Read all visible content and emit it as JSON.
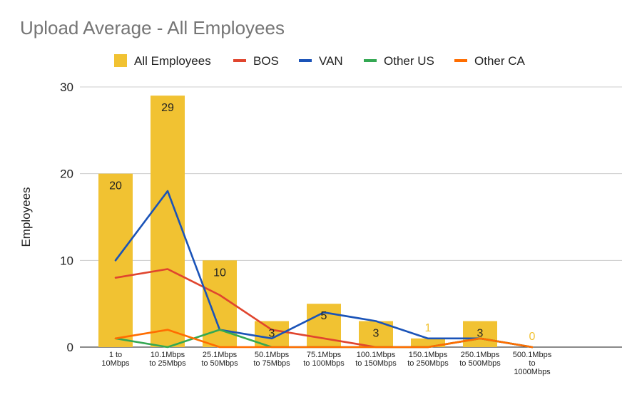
{
  "chart_data": {
    "type": "bar",
    "title": "Upload Average - All Employees",
    "ylabel": "Employees",
    "xlabel": "",
    "ylim": [
      0,
      30
    ],
    "yticks": [
      0,
      10,
      20,
      30
    ],
    "grid": true,
    "legend_position": "top",
    "categories": [
      [
        "1 to",
        "10Mbps"
      ],
      [
        "10.1Mbps",
        "to 25Mbps"
      ],
      [
        "25.1Mbps",
        "to 50Mbps"
      ],
      [
        "50.1Mbps",
        "to 75Mbps"
      ],
      [
        "75.1Mbps",
        "to 100Mbps"
      ],
      [
        "100.1Mbps",
        "to 150Mbps"
      ],
      [
        "150.1Mbps",
        "to 250Mbps"
      ],
      [
        "250.1Mbps",
        "to 500Mbps"
      ],
      [
        "500.1Mbps",
        "to",
        "1000Mbps"
      ]
    ],
    "bar_series": {
      "name": "All Employees",
      "color": "#F1C232",
      "values": [
        20,
        29,
        10,
        3,
        5,
        3,
        1,
        3,
        0
      ],
      "labels": [
        "20",
        "29",
        "10",
        "3",
        "5",
        "3",
        "1",
        "3",
        "0"
      ]
    },
    "line_series": [
      {
        "name": "BOS",
        "color": "#E0452E",
        "values": [
          8,
          9,
          6,
          2,
          1,
          0,
          0,
          1,
          0
        ]
      },
      {
        "name": "VAN",
        "color": "#1A53B8",
        "values": [
          10,
          18,
          2,
          1,
          4,
          3,
          1,
          1,
          0
        ]
      },
      {
        "name": "Other US",
        "color": "#34A853",
        "values": [
          1,
          0,
          2,
          0,
          0,
          0,
          0,
          1,
          0
        ]
      },
      {
        "name": "Other CA",
        "color": "#FF6D00",
        "values": [
          1,
          2,
          0,
          0,
          0,
          0,
          0,
          1,
          0
        ]
      }
    ]
  }
}
